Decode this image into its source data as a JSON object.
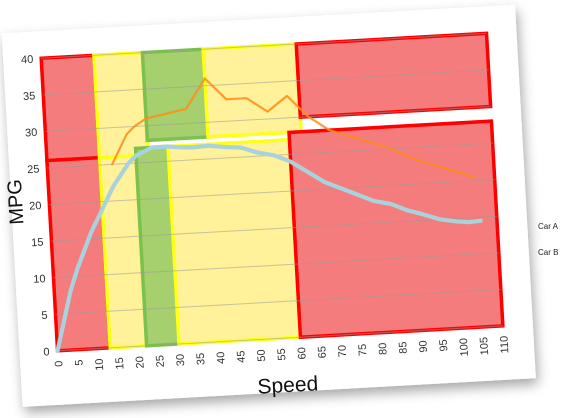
{
  "chart_data": {
    "type": "line",
    "title": "",
    "xlabel": "Speed",
    "ylabel": "MPG",
    "xlim": [
      0,
      110
    ],
    "ylim": [
      0,
      40
    ],
    "x_ticks": [
      "0",
      "5",
      "10",
      "15",
      "20",
      "25",
      "30",
      "35",
      "40",
      "45",
      "50",
      "55",
      "60",
      "65",
      "70",
      "75",
      "80",
      "85",
      "90",
      "95",
      "100",
      "105",
      "110"
    ],
    "y_ticks": [
      "0",
      "5",
      "10",
      "15",
      "20",
      "25",
      "30",
      "35",
      "40"
    ],
    "grid": "horizontal",
    "legend": [
      {
        "name": "Car A",
        "color": "#ff8c1a"
      },
      {
        "name": "Car B",
        "color": "#a9d2dc"
      }
    ],
    "series": [
      {
        "name": "Car A",
        "color": "#ff8c1a",
        "x": [
          16,
          20,
          22,
          25,
          30,
          35,
          40,
          45,
          50,
          55,
          60,
          65,
          70,
          75,
          80,
          85,
          90,
          95,
          100,
          105
        ],
        "y": [
          25,
          29,
          30,
          31,
          31.5,
          32,
          36,
          33,
          33,
          31,
          33,
          30,
          28,
          27,
          26,
          25,
          23.5,
          22.5,
          21.5,
          20.5
        ]
      },
      {
        "name": "Car B",
        "color": "#a9d2dc",
        "x": [
          0,
          2,
          4,
          6,
          8,
          10,
          12,
          14,
          16,
          18,
          20,
          22,
          24,
          26,
          28,
          30,
          33,
          36,
          40,
          44,
          48,
          52,
          56,
          60,
          64,
          68,
          72,
          76,
          80,
          84,
          88,
          92,
          96,
          100,
          103,
          106
        ],
        "y": [
          0,
          4,
          8,
          11,
          13.5,
          16,
          18,
          20,
          22,
          23.5,
          25,
          26,
          26.5,
          27,
          27,
          27,
          26.8,
          26.7,
          26.8,
          26.5,
          26.3,
          25.5,
          25,
          24,
          22.5,
          21,
          20,
          19,
          18,
          17.5,
          16.5,
          15.8,
          15,
          14.6,
          14.4,
          14.5
        ]
      }
    ],
    "regions": [
      {
        "band": "red",
        "x0": 0,
        "x1": 13,
        "y0": 26,
        "y1": 40
      },
      {
        "band": "red",
        "x0": 0,
        "x1": 13,
        "y0": 0,
        "y1": 26
      },
      {
        "band": "yellow",
        "x0": 13,
        "x1": 25,
        "y0": 26,
        "y1": 40
      },
      {
        "band": "yellow",
        "x0": 13,
        "x1": 22,
        "y0": 0,
        "y1": 26
      },
      {
        "band": "green",
        "x0": 22,
        "x1": 30,
        "y0": 0,
        "y1": 27
      },
      {
        "band": "green",
        "x0": 25,
        "x1": 40,
        "y0": 28,
        "y1": 40
      },
      {
        "band": "yellow",
        "x0": 30,
        "x1": 60,
        "y0": 0,
        "y1": 27
      },
      {
        "band": "yellow",
        "x0": 40,
        "x1": 63,
        "y0": 28,
        "y1": 40
      },
      {
        "band": "red",
        "x0": 63,
        "x1": 110,
        "y0": 30,
        "y1": 40
      },
      {
        "band": "red",
        "x0": 60,
        "x1": 110,
        "y0": 0,
        "y1": 28
      }
    ],
    "band_colors": {
      "red": {
        "fill": "#f47c7c",
        "stroke": "#ff0000"
      },
      "yellow": {
        "fill": "#fff29a",
        "stroke": "#ffff1a"
      },
      "green": {
        "fill": "#a6cf6e",
        "stroke": "#7cc04e"
      }
    }
  }
}
